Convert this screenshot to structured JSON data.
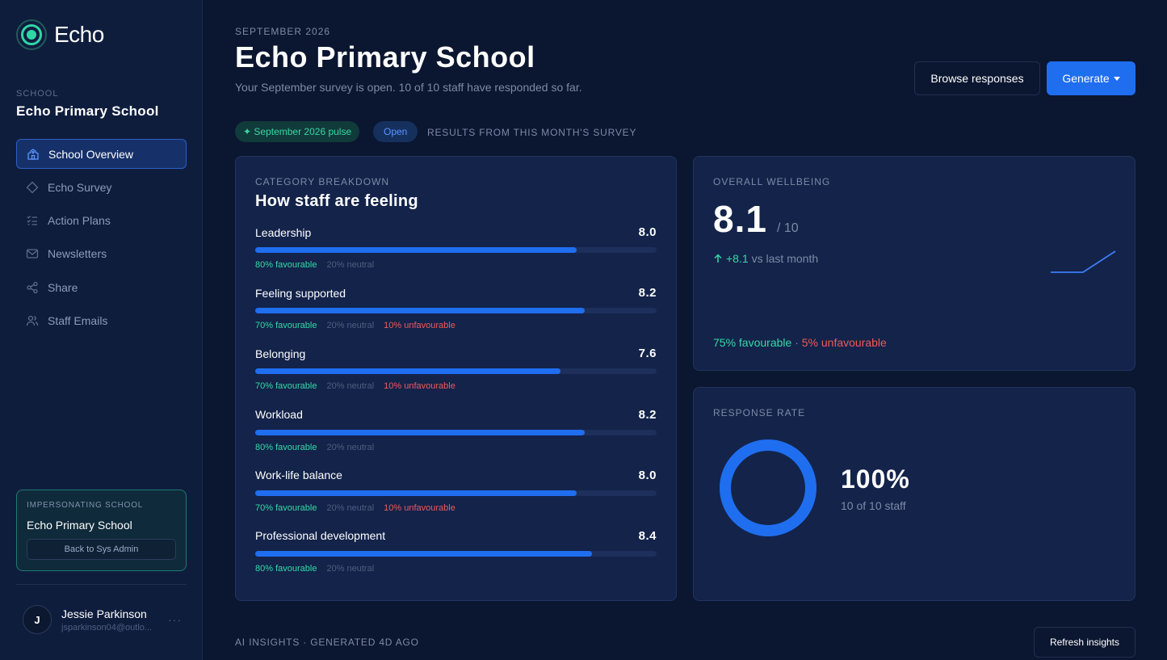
{
  "app": {
    "name": "Echo",
    "accent": "#2fd6a6",
    "primary": "#1f6ef0"
  },
  "sidebar": {
    "school_label": "SCHOOL",
    "school_name": "Echo Primary School",
    "items": [
      {
        "label": "School Overview",
        "icon": "school-icon",
        "active": true
      },
      {
        "label": "Echo Survey",
        "icon": "diamond-icon",
        "active": false
      },
      {
        "label": "Action Plans",
        "icon": "checklist-icon",
        "active": false
      },
      {
        "label": "Newsletters",
        "icon": "mail-icon",
        "active": false
      },
      {
        "label": "Share",
        "icon": "share-icon",
        "active": false
      },
      {
        "label": "Staff Emails",
        "icon": "users-icon",
        "active": false
      }
    ],
    "impersonating": {
      "label": "IMPERSONATING SCHOOL",
      "school": "Echo Primary School",
      "back_button": "Back to Sys Admin"
    },
    "user": {
      "initial": "J",
      "name": "Jessie Parkinson",
      "email": "jsparkinson04@outlo...",
      "more": "···"
    }
  },
  "header": {
    "month": "SEPTEMBER 2026",
    "title": "Echo Primary School",
    "subtitle": "Your September survey is open. 10 of 10 staff have responded so far.",
    "browse_button": "Browse responses",
    "generate_button": "Generate"
  },
  "status": {
    "pulse_pill": "✦ September 2026 pulse",
    "open_pill": "Open",
    "results_label": "RESULTS FROM THIS MONTH'S SURVEY"
  },
  "categories": {
    "label": "CATEGORY BREAKDOWN",
    "title": "How staff are feeling",
    "items": [
      {
        "name": "Leadership",
        "score": "8.0",
        "fill": 0.8,
        "favourable": "80% favourable",
        "neutral": "20% neutral",
        "unfavourable": ""
      },
      {
        "name": "Feeling supported",
        "score": "8.2",
        "fill": 0.82,
        "favourable": "70% favourable",
        "neutral": "20% neutral",
        "unfavourable": "10% unfavourable"
      },
      {
        "name": "Belonging",
        "score": "7.6",
        "fill": 0.76,
        "favourable": "70% favourable",
        "neutral": "20% neutral",
        "unfavourable": "10% unfavourable"
      },
      {
        "name": "Workload",
        "score": "8.2",
        "fill": 0.82,
        "favourable": "80% favourable",
        "neutral": "20% neutral",
        "unfavourable": ""
      },
      {
        "name": "Work-life balance",
        "score": "8.0",
        "fill": 0.8,
        "favourable": "70% favourable",
        "neutral": "20% neutral",
        "unfavourable": "10% unfavourable"
      },
      {
        "name": "Professional development",
        "score": "8.4",
        "fill": 0.84,
        "favourable": "80% favourable",
        "neutral": "20% neutral",
        "unfavourable": ""
      }
    ]
  },
  "wellbeing": {
    "label": "OVERALL WELLBEING",
    "score": "8.1",
    "max": "/ 10",
    "delta": "+8.1",
    "delta_suffix": "vs last month",
    "favourable": "75% favourable",
    "separator": "·",
    "unfavourable": "5% unfavourable",
    "trend": [
      0,
      0,
      8.1
    ]
  },
  "response": {
    "label": "RESPONSE RATE",
    "rate": 1.0,
    "percent": "100%",
    "detail": "10 of 10 staff"
  },
  "insights": {
    "label": "AI INSIGHTS · GENERATED 4D AGO",
    "refresh_button": "Refresh insights"
  }
}
